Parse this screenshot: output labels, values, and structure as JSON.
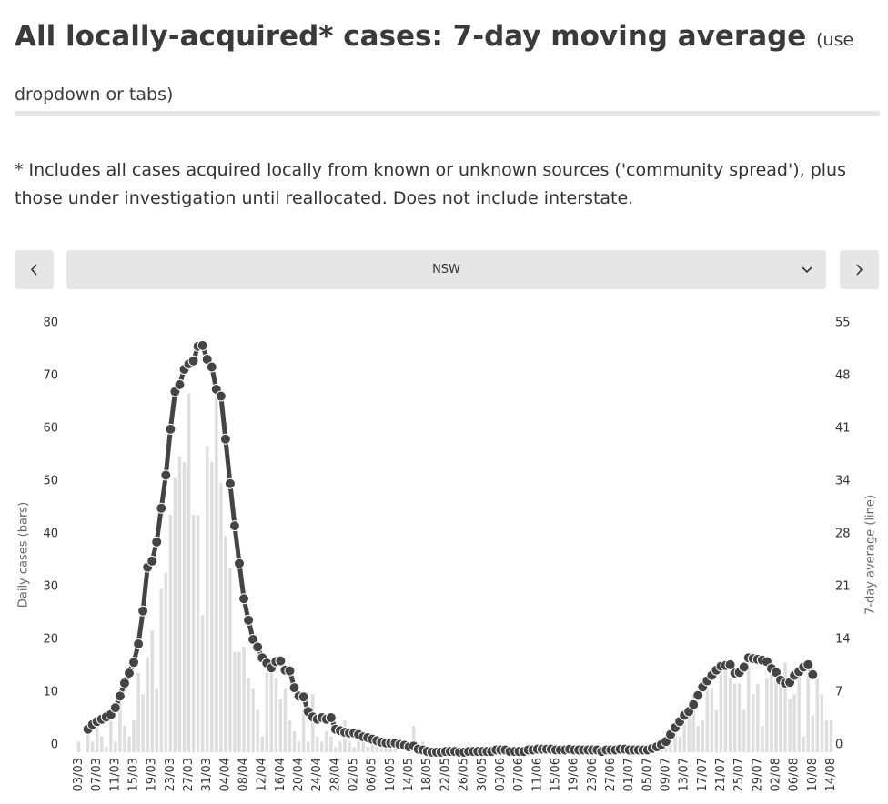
{
  "header": {
    "title": "All locally-acquired* cases: 7-day moving average",
    "hint": "(use dropdown or tabs)"
  },
  "note": "* Includes all cases acquired locally from known or unknown sources ('community spread'), plus those under investigation until reallocated. Does not include interstate.",
  "controls": {
    "selected": "NSW"
  },
  "chart_data": {
    "type": "bar-line",
    "y_label": "Daily cases (bars)",
    "y2_label": "7-day average (line)",
    "categories": [
      "03/03",
      null,
      null,
      null,
      "07/03",
      null,
      null,
      null,
      "11/03",
      null,
      null,
      null,
      "15/03",
      null,
      null,
      null,
      "19/03",
      null,
      null,
      null,
      "23/03",
      null,
      null,
      null,
      "27/03",
      null,
      null,
      null,
      "31/03",
      null,
      null,
      null,
      "04/04",
      null,
      null,
      null,
      "08/04",
      null,
      null,
      null,
      "12/04",
      null,
      null,
      null,
      "16/04",
      null,
      null,
      null,
      "20/04",
      null,
      null,
      null,
      "24/04",
      null,
      null,
      null,
      "28/04",
      null,
      null,
      null,
      "02/05",
      null,
      null,
      null,
      "06/05",
      null,
      null,
      null,
      "10/05",
      null,
      null,
      null,
      "14/05",
      null,
      null,
      null,
      "18/05",
      null,
      null,
      null,
      "22/05",
      null,
      null,
      null,
      "26/05",
      null,
      null,
      null,
      "30/05",
      null,
      null,
      null,
      "03/06",
      null,
      null,
      null,
      "07/06",
      null,
      null,
      null,
      "11/06",
      null,
      null,
      null,
      "15/06",
      null,
      null,
      null,
      "19/06",
      null,
      null,
      null,
      "23/06",
      null,
      null,
      null,
      "27/06",
      null,
      null,
      null,
      "01/07",
      null,
      null,
      null,
      "05/07",
      null,
      null,
      null,
      "09/07",
      null,
      null,
      null,
      "13/07",
      null,
      null,
      null,
      "17/07",
      null,
      null,
      null,
      "21/07",
      null,
      null,
      null,
      "25/07",
      null,
      null,
      null,
      "29/07",
      null,
      null,
      null,
      "02/08",
      null,
      null,
      null,
      "06/08",
      null,
      null,
      null,
      "10/08",
      null,
      null,
      null,
      "14/08"
    ],
    "series": [
      {
        "kind": "bar",
        "color": "#dedede",
        "values": [
          2,
          0,
          4,
          2,
          5,
          3,
          1,
          6,
          2,
          10,
          5,
          3,
          6,
          15,
          11,
          18,
          23,
          12,
          31,
          34,
          45,
          52,
          56,
          55,
          68,
          45,
          45,
          26,
          58,
          55,
          68,
          51,
          41,
          35,
          19,
          19,
          20,
          14,
          12,
          8,
          3,
          15,
          15,
          14,
          10,
          12,
          6,
          4,
          2,
          8,
          2,
          11,
          3,
          2,
          4,
          3,
          1,
          2,
          6,
          2,
          1,
          3,
          2,
          1,
          3,
          1,
          1,
          2,
          1,
          1,
          0,
          0,
          2,
          5,
          1,
          2,
          0,
          0,
          1,
          0,
          0,
          0,
          1,
          0,
          0,
          0,
          1,
          0,
          0,
          0,
          0,
          1,
          0,
          0,
          0,
          0,
          1,
          0,
          0,
          1,
          0,
          1,
          1,
          0,
          0,
          0,
          0,
          1,
          0,
          0,
          1,
          0,
          0,
          0,
          0,
          1,
          0,
          0,
          1,
          0,
          0,
          0,
          1,
          0,
          1,
          0,
          1,
          1,
          1,
          3,
          4,
          3,
          8,
          7,
          11,
          5,
          6,
          12,
          12,
          8,
          15,
          17,
          14,
          13,
          13,
          8,
          16,
          11,
          13,
          5,
          14,
          18,
          14,
          15,
          17,
          10,
          11,
          16,
          3,
          15,
          7,
          14,
          11,
          6,
          6
        ]
      },
      {
        "kind": "line",
        "axis": "y2",
        "color": "#444444",
        "values": [
          null,
          null,
          3.0,
          3.6,
          4.0,
          4.3,
          4.6,
          4.9,
          5.8,
          7.3,
          9.0,
          10.3,
          11.7,
          14.1,
          18.4,
          24.1,
          24.9,
          27.4,
          31.8,
          36.1,
          42.1,
          47.0,
          47.9,
          49.9,
          50.6,
          51.0,
          52.9,
          53.0,
          51.2,
          50.2,
          47.3,
          46.4,
          40.8,
          35.0,
          29.5,
          24.6,
          20.0,
          17.2,
          14.7,
          13.7,
          12.3,
          11.6,
          11.0,
          11.8,
          11.9,
          10.7,
          10.6,
          8.4,
          7.3,
          7.2,
          5.3,
          4.6,
          4.3,
          4.5,
          4.3,
          4.5,
          3.0,
          2.8,
          2.6,
          2.5,
          2.5,
          2.3,
          2.0,
          1.9,
          1.7,
          1.5,
          1.3,
          1.2,
          1.2,
          1.2,
          1.0,
          0.9,
          0.7,
          0.8,
          0.4,
          0.3,
          0.1,
          0,
          0,
          0,
          0.1,
          0.1,
          0.1,
          0,
          0,
          0.1,
          0.1,
          0.1,
          0.1,
          0.1,
          0.1,
          0.3,
          0.3,
          0.3,
          0.1,
          0.1,
          0.1,
          0.1,
          0.3,
          0.3,
          0.4,
          0.4,
          0.4,
          0.4,
          0.3,
          0.3,
          0.3,
          0.4,
          0.3,
          0.3,
          0.3,
          0.3,
          0.3,
          0.3,
          0.1,
          0.3,
          0.3,
          0.3,
          0.4,
          0.4,
          0.3,
          0.3,
          0.3,
          0.3,
          0.3,
          0.5,
          0.7,
          1.0,
          1.4,
          2.3,
          3.2,
          4.0,
          4.8,
          5.3,
          6.2,
          7.4,
          8.5,
          9.3,
          10.0,
          10.7,
          11.2,
          11.3,
          11.4,
          10.3,
          10.4,
          11.1,
          12.3,
          12.2,
          12.1,
          12.0,
          11.8,
          10.9,
          10.4,
          9.4,
          9.0,
          9.1,
          10.0,
          10.5,
          11.1,
          11.4,
          10.1,
          null,
          null,
          null,
          null
        ]
      }
    ],
    "ylim": [
      0,
      80
    ],
    "yticks": [
      0,
      10,
      20,
      30,
      40,
      50,
      60,
      70,
      80
    ],
    "y2lim": [
      0,
      55
    ],
    "y2ticks": [
      0,
      {
        "value": 6.875,
        "label": "7"
      },
      {
        "value": 13.75,
        "label": "14"
      },
      {
        "value": 20.625,
        "label": "21"
      },
      {
        "value": 27.5,
        "label": "28"
      },
      {
        "value": 34.375,
        "label": "34"
      },
      {
        "value": 41.25,
        "label": "41"
      },
      {
        "value": 48.125,
        "label": "48"
      },
      55
    ],
    "grid": false
  }
}
